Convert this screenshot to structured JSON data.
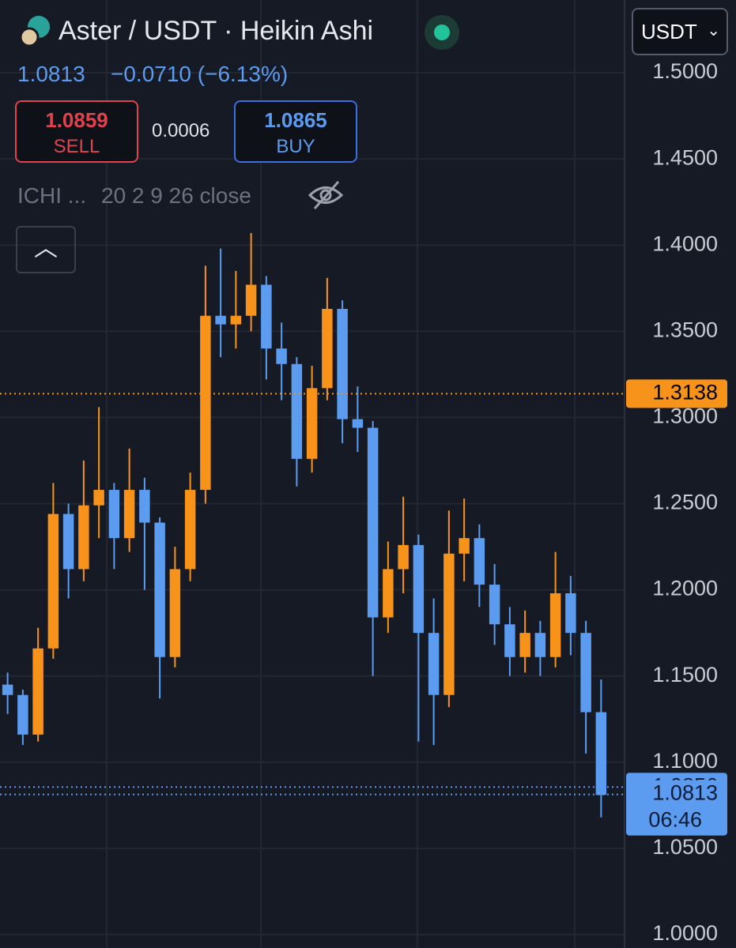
{
  "header": {
    "title": "Aster / USDT · Heikin Ashi",
    "last": "1.0813",
    "change": "−0.0710 (−6.13%)",
    "currency": "USDT"
  },
  "trade": {
    "sell_price": "1.0859",
    "sell_label": "SELL",
    "spread": "0.0006",
    "buy_price": "1.0865",
    "buy_label": "BUY"
  },
  "indicator": {
    "name": "ICHI ...",
    "params": "20 2 9 26 close"
  },
  "chart_data": {
    "type": "candlestick",
    "up_color": "#f7931a",
    "down_color": "#5b9cf0",
    "open": [
      1.145,
      1.139,
      1.116,
      1.166,
      1.244,
      1.212,
      1.249,
      1.258,
      1.23,
      1.258,
      1.239,
      1.161,
      1.212,
      1.258,
      1.359,
      1.354,
      1.359,
      1.377,
      1.34,
      1.331,
      1.276,
      1.317,
      1.363,
      1.299,
      1.294,
      1.184,
      1.212,
      1.226,
      1.175,
      1.139,
      1.221,
      1.23,
      1.203,
      1.18,
      1.161,
      1.175,
      1.161,
      1.198,
      1.175,
      1.129
    ],
    "high": [
      1.152,
      1.142,
      1.178,
      1.262,
      1.25,
      1.275,
      1.306,
      1.262,
      1.282,
      1.265,
      1.242,
      1.225,
      1.268,
      1.388,
      1.398,
      1.385,
      1.407,
      1.382,
      1.355,
      1.335,
      1.33,
      1.381,
      1.368,
      1.318,
      1.298,
      1.228,
      1.254,
      1.232,
      1.195,
      1.246,
      1.253,
      1.238,
      1.215,
      1.19,
      1.188,
      1.182,
      1.222,
      1.208,
      1.182,
      1.148
    ],
    "low": [
      1.128,
      1.11,
      1.112,
      1.16,
      1.195,
      1.205,
      1.23,
      1.212,
      1.222,
      1.2,
      1.137,
      1.155,
      1.205,
      1.25,
      1.335,
      1.34,
      1.35,
      1.322,
      1.31,
      1.26,
      1.268,
      1.31,
      1.285,
      1.28,
      1.15,
      1.175,
      1.198,
      1.112,
      1.11,
      1.132,
      1.205,
      1.19,
      1.168,
      1.15,
      1.152,
      1.15,
      1.155,
      1.162,
      1.105,
      1.068
    ],
    "close": [
      1.139,
      1.116,
      1.166,
      1.244,
      1.212,
      1.249,
      1.258,
      1.23,
      1.258,
      1.239,
      1.161,
      1.212,
      1.258,
      1.359,
      1.354,
      1.359,
      1.377,
      1.34,
      1.331,
      1.276,
      1.317,
      1.363,
      1.299,
      1.294,
      1.184,
      1.212,
      1.226,
      1.175,
      1.139,
      1.221,
      1.23,
      1.203,
      1.18,
      1.161,
      1.175,
      1.161,
      1.198,
      1.175,
      1.129,
      1.081
    ],
    "ylim": [
      0.9922,
      1.5422
    ],
    "yticks": [
      {
        "value": 1.0,
        "label": "1.0000"
      },
      {
        "value": 1.05,
        "label": "1.0500"
      },
      {
        "value": 1.1,
        "label": "1.1000"
      },
      {
        "value": 1.15,
        "label": "1.1500"
      },
      {
        "value": 1.2,
        "label": "1.2000"
      },
      {
        "value": 1.25,
        "label": "1.2500"
      },
      {
        "value": 1.3,
        "label": "1.3000"
      },
      {
        "value": 1.35,
        "label": "1.3500"
      },
      {
        "value": 1.4,
        "label": "1.4000"
      },
      {
        "value": 1.45,
        "label": "1.4500"
      },
      {
        "value": 1.5,
        "label": "1.5000"
      }
    ],
    "grid": true,
    "price_lines": [
      {
        "value": 1.3138,
        "color": "#f7931a"
      },
      {
        "value": 1.0856,
        "color": "#5b9cf0"
      },
      {
        "value": 1.0813,
        "color": "#5b9cf0",
        "countdown": "06:46"
      }
    ]
  }
}
